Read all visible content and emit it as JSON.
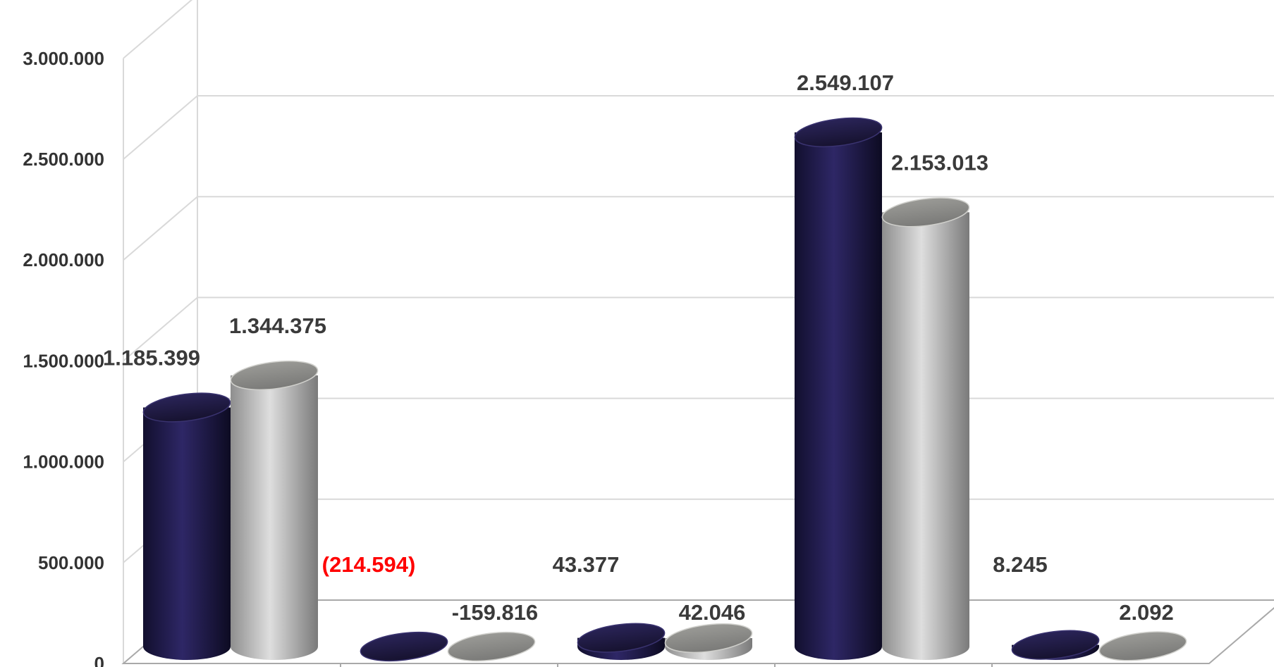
{
  "colors": {
    "series_a": "#221c4a",
    "series_b": "#b4b4b4",
    "negative_label": "#ff0000",
    "grid": "#d9d9d9",
    "label": "#3a3a3a"
  },
  "chart_data": {
    "type": "bar",
    "style": "3d-cylinder",
    "grid": true,
    "legend": "none",
    "ylim": [
      0,
      3000000
    ],
    "yticks": [
      0,
      500000,
      1000000,
      1500000,
      2000000,
      2500000,
      3000000
    ],
    "ytick_labels": [
      "0",
      "500.000",
      "1.000.000",
      "1.500.000",
      "2.000.000",
      "2.500.000",
      "3.000.000"
    ],
    "categories": [
      "",
      "",
      "",
      "",
      ""
    ],
    "series": [
      {
        "values": [
          1185399,
          -214594,
          43377,
          2549107,
          8245
        ],
        "labels": [
          "1.185.399",
          "(214.594)",
          "43.377",
          "2.549.107",
          "8.245"
        ]
      },
      {
        "values": [
          1344375,
          -159816,
          42046,
          2153013,
          2092
        ],
        "labels": [
          "1.344.375",
          "-159.816",
          "42.046",
          "2.153.013",
          "2.092"
        ]
      }
    ]
  }
}
